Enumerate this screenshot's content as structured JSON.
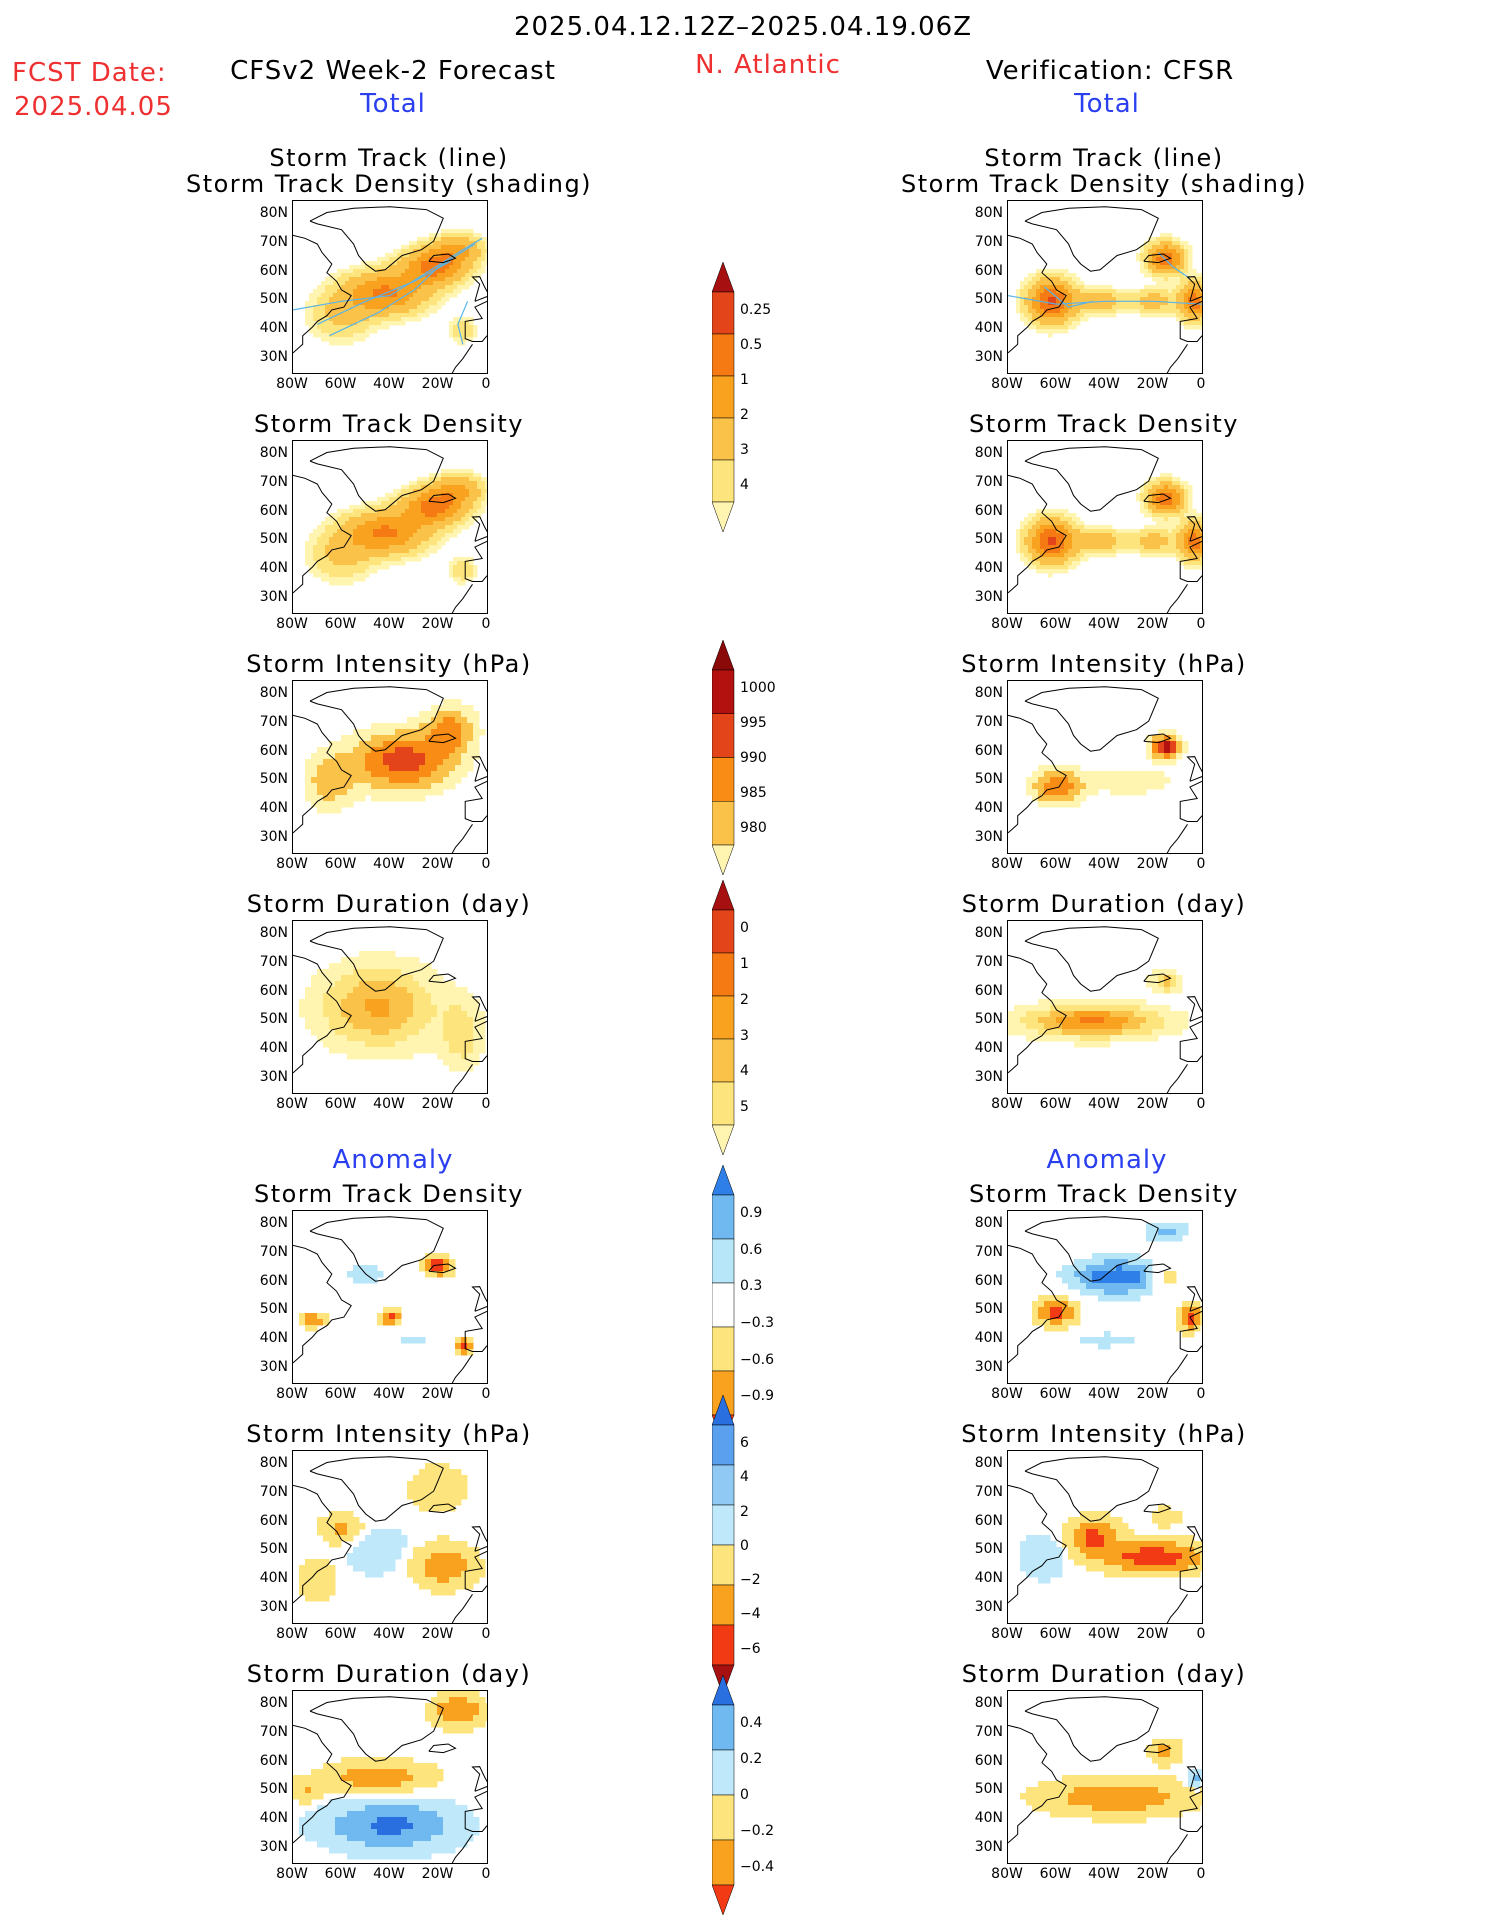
{
  "header": {
    "title": "2025.04.12.12Z–2025.04.19.06Z",
    "fcst_label": "FCST Date:",
    "fcst_date": "2025.04.05",
    "left_title": "CFSv2 Week-2 Forecast",
    "region": "N. Atlantic",
    "right_title": "Verification: CFSR",
    "total_label": "Total",
    "anomaly_label": "Anomaly"
  },
  "colors": {
    "red_text": "#ee3030",
    "blue_text": "#2a3ff0",
    "track_line": "#5ab4e8"
  },
  "chart_data": {
    "type": "heatmap",
    "map_axes": {
      "lat_ticks": [
        "80N",
        "70N",
        "60N",
        "50N",
        "40N",
        "30N"
      ],
      "lon_ticks": [
        "80W",
        "60W",
        "40W",
        "20W",
        "0"
      ],
      "lat_range": [
        25,
        85
      ],
      "lon_range": [
        -80,
        0
      ]
    },
    "rows": [
      {
        "title_lines": [
          "Storm Track (line)",
          "Storm Track Density (shading)"
        ],
        "section": "total",
        "variable": "density",
        "track_lines": true
      },
      {
        "title_lines": [
          "Storm Track Density"
        ],
        "section": "total",
        "variable": "density"
      },
      {
        "title_lines": [
          "Storm Intensity (hPa)"
        ],
        "section": "total",
        "variable": "intensity"
      },
      {
        "title_lines": [
          "Storm Duration (day)"
        ],
        "section": "total",
        "variable": "duration"
      },
      {
        "title_lines": [
          "Storm Track Density"
        ],
        "section": "anomaly",
        "variable": "density_anom"
      },
      {
        "title_lines": [
          "Storm Intensity (hPa)"
        ],
        "section": "anomaly",
        "variable": "intensity_anom"
      },
      {
        "title_lines": [
          "Storm Duration (day)"
        ],
        "section": "anomaly",
        "variable": "duration_anom"
      }
    ],
    "colorbars": [
      {
        "name": "total-density",
        "labels": [
          "0.25",
          "0.5",
          "1",
          "2",
          "3",
          "4"
        ],
        "colors": [
          "#fff5b0",
          "#fde47c",
          "#fbc24a",
          "#f9a21f",
          "#f57a14",
          "#e3441a",
          "#a61010"
        ]
      },
      {
        "name": "total-intensity",
        "labels": [
          "1000",
          "995",
          "990",
          "985",
          "980"
        ],
        "colors": [
          "#fff5b0",
          "#fbc24a",
          "#f98c14",
          "#e3441a",
          "#b31010",
          "#8a0a0a"
        ]
      },
      {
        "name": "total-duration",
        "labels": [
          "0",
          "1",
          "2",
          "3",
          "4",
          "5"
        ],
        "colors": [
          "#fff5b0",
          "#fde47c",
          "#fbc24a",
          "#f9a21f",
          "#f57a14",
          "#e3441a",
          "#a61010"
        ]
      },
      {
        "name": "anom-density",
        "labels": [
          "0.9",
          "0.6",
          "0.3",
          "−0.3",
          "−0.6",
          "−0.9"
        ],
        "colors": [
          "#f23a14",
          "#f9a21f",
          "#fde47c",
          "#ffffff",
          "#b7e6f8",
          "#6fb8f0",
          "#2f7fe8"
        ]
      },
      {
        "name": "anom-intensity",
        "labels": [
          "6",
          "4",
          "2",
          "0",
          "−2",
          "−4",
          "−6"
        ],
        "colors": [
          "#a61010",
          "#f23a14",
          "#f9a21f",
          "#fde47c",
          "#bfe9fa",
          "#8fc9f4",
          "#5aa0ee",
          "#2a6fe0"
        ]
      },
      {
        "name": "anom-duration",
        "labels": [
          "0.4",
          "0.2",
          "0",
          "−0.2",
          "−0.4"
        ],
        "colors": [
          "#f23a14",
          "#f9a21f",
          "#fde47c",
          "#bfe9fa",
          "#6fb8f0",
          "#2a6fe0"
        ]
      }
    ]
  }
}
